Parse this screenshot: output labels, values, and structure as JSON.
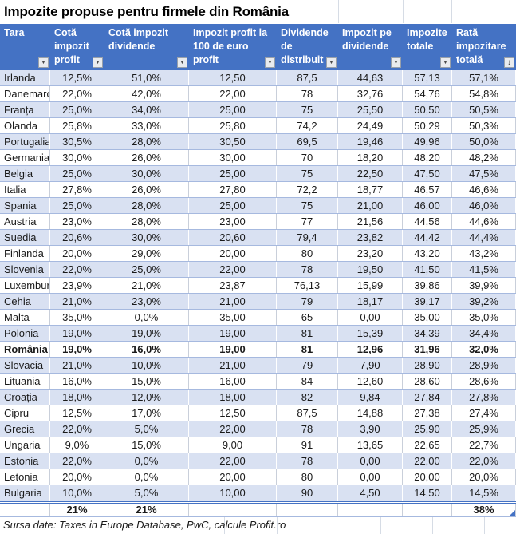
{
  "title": "Impozite propuse pentru firmele din România",
  "icons": {
    "filter_dropdown": "▼",
    "sort_descending": "↓"
  },
  "colors": {
    "header_bg": "#4472C4",
    "header_text": "#FFFFFF",
    "band_bg": "#D9E1F2",
    "row_border": "#A6B9DF",
    "accent_border": "#4472C4",
    "grid_line": "#D6DCE5",
    "text_color": "#1A1A1A"
  },
  "table": {
    "columns": [
      {
        "label": "Tara",
        "button": "filter-dropdown"
      },
      {
        "label": "Cotă impozit profit",
        "button": "filter-dropdown"
      },
      {
        "label": "Cotă impozit dividende",
        "button": "filter-dropdown"
      },
      {
        "label": "Impozit profit la 100 de euro profit",
        "button": "filter-dropdown"
      },
      {
        "label": "Dividende de distribuit",
        "button": "filter-dropdown"
      },
      {
        "label": "Impozit pe dividende",
        "button": "filter-dropdown"
      },
      {
        "label": "Impozite totale",
        "button": "filter-dropdown"
      },
      {
        "label": "Rată impozitare totală",
        "button": "sort-descending"
      }
    ],
    "bold_row": "România",
    "rows": [
      [
        "Irlanda",
        "12,5%",
        "51,0%",
        "12,50",
        "87,5",
        "44,63",
        "57,13",
        "57,1%"
      ],
      [
        "Danemarca",
        "22,0%",
        "42,0%",
        "22,00",
        "78",
        "32,76",
        "54,76",
        "54,8%"
      ],
      [
        "Franța",
        "25,0%",
        "34,0%",
        "25,00",
        "75",
        "25,50",
        "50,50",
        "50,5%"
      ],
      [
        "Olanda",
        "25,8%",
        "33,0%",
        "25,80",
        "74,2",
        "24,49",
        "50,29",
        "50,3%"
      ],
      [
        "Portugalia",
        "30,5%",
        "28,0%",
        "30,50",
        "69,5",
        "19,46",
        "49,96",
        "50,0%"
      ],
      [
        "Germania",
        "30,0%",
        "26,0%",
        "30,00",
        "70",
        "18,20",
        "48,20",
        "48,2%"
      ],
      [
        "Belgia",
        "25,0%",
        "30,0%",
        "25,00",
        "75",
        "22,50",
        "47,50",
        "47,5%"
      ],
      [
        "Italia",
        "27,8%",
        "26,0%",
        "27,80",
        "72,2",
        "18,77",
        "46,57",
        "46,6%"
      ],
      [
        "Spania",
        "25,0%",
        "28,0%",
        "25,00",
        "75",
        "21,00",
        "46,00",
        "46,0%"
      ],
      [
        "Austria",
        "23,0%",
        "28,0%",
        "23,00",
        "77",
        "21,56",
        "44,56",
        "44,6%"
      ],
      [
        "Suedia",
        "20,6%",
        "30,0%",
        "20,60",
        "79,4",
        "23,82",
        "44,42",
        "44,4%"
      ],
      [
        "Finlanda",
        "20,0%",
        "29,0%",
        "20,00",
        "80",
        "23,20",
        "43,20",
        "43,2%"
      ],
      [
        "Slovenia",
        "22,0%",
        "25,0%",
        "22,00",
        "78",
        "19,50",
        "41,50",
        "41,5%"
      ],
      [
        "Luxemburg",
        "23,9%",
        "21,0%",
        "23,87",
        "76,13",
        "15,99",
        "39,86",
        "39,9%"
      ],
      [
        "Cehia",
        "21,0%",
        "23,0%",
        "21,00",
        "79",
        "18,17",
        "39,17",
        "39,2%"
      ],
      [
        "Malta",
        "35,0%",
        "0,0%",
        "35,00",
        "65",
        "0,00",
        "35,00",
        "35,0%"
      ],
      [
        "Polonia",
        "19,0%",
        "19,0%",
        "19,00",
        "81",
        "15,39",
        "34,39",
        "34,4%"
      ],
      [
        "România",
        "19,0%",
        "16,0%",
        "19,00",
        "81",
        "12,96",
        "31,96",
        "32,0%"
      ],
      [
        "Slovacia",
        "21,0%",
        "10,0%",
        "21,00",
        "79",
        "7,90",
        "28,90",
        "28,9%"
      ],
      [
        "Lituania",
        "16,0%",
        "15,0%",
        "16,00",
        "84",
        "12,60",
        "28,60",
        "28,6%"
      ],
      [
        "Croația",
        "18,0%",
        "12,0%",
        "18,00",
        "82",
        "9,84",
        "27,84",
        "27,8%"
      ],
      [
        "Cipru",
        "12,5%",
        "17,0%",
        "12,50",
        "87,5",
        "14,88",
        "27,38",
        "27,4%"
      ],
      [
        "Grecia",
        "22,0%",
        "5,0%",
        "22,00",
        "78",
        "3,90",
        "25,90",
        "25,9%"
      ],
      [
        "Ungaria",
        "9,0%",
        "15,0%",
        "9,00",
        "91",
        "13,65",
        "22,65",
        "22,7%"
      ],
      [
        "Estonia",
        "22,0%",
        "0,0%",
        "22,00",
        "78",
        "0,00",
        "22,00",
        "22,0%"
      ],
      [
        "Letonia",
        "20,0%",
        "0,0%",
        "20,00",
        "80",
        "0,00",
        "20,00",
        "20,0%"
      ],
      [
        "Bulgaria",
        "10,0%",
        "5,0%",
        "10,00",
        "90",
        "4,50",
        "14,50",
        "14,5%"
      ]
    ],
    "totals": {
      "profit_rate": "21%",
      "dividend_rate": "21%",
      "total_rate": "38%"
    }
  },
  "source": "Sursa date: Taxes in Europe Database, PwC, calcule Profit.ro"
}
